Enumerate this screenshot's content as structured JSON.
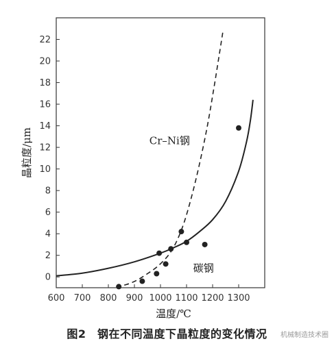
{
  "chart_data": {
    "type": "line",
    "title": "",
    "xlabel": "温度/℃",
    "ylabel": "晶粒度/μm",
    "xlim": [
      600,
      1400
    ],
    "ylim": [
      -1,
      24
    ],
    "xticks": [
      600,
      700,
      800,
      900,
      1000,
      1100,
      1200,
      1300
    ],
    "yticks": [
      0,
      2,
      4,
      6,
      8,
      10,
      12,
      14,
      16,
      18,
      20,
      22
    ],
    "grid": false,
    "series": [
      {
        "name": "Cr–Ni钢",
        "style": "dashed",
        "color": "#222222",
        "x": [
          830,
          870,
          910,
          950,
          990,
          1030,
          1060,
          1090,
          1120,
          1150,
          1180,
          1205,
          1225,
          1240
        ],
        "y": [
          -0.9,
          -0.7,
          -0.3,
          0.3,
          1.0,
          2.0,
          3.2,
          5.0,
          7.5,
          10.5,
          14.0,
          17.5,
          20.5,
          22.8
        ]
      },
      {
        "name": "碳钢",
        "style": "solid",
        "color": "#222222",
        "x": [
          600,
          700,
          800,
          900,
          1000,
          1050,
          1100,
          1150,
          1200,
          1250,
          1300,
          1330,
          1345,
          1355
        ],
        "y": [
          0.1,
          0.35,
          0.8,
          1.4,
          2.2,
          2.7,
          3.3,
          4.2,
          5.3,
          7.0,
          9.8,
          12.5,
          14.5,
          16.4
        ]
      }
    ],
    "points": {
      "x": [
        840,
        930,
        985,
        995,
        1020,
        1040,
        1080,
        1100,
        1170,
        1300
      ],
      "y": [
        -0.9,
        -0.4,
        0.3,
        2.2,
        1.2,
        2.6,
        4.2,
        3.2,
        3.0,
        13.8
      ]
    },
    "annotations": [
      {
        "text": "Cr–Ni钢",
        "x": 1035,
        "y": 12.3
      },
      {
        "text": "碳钢",
        "x": 1165,
        "y": 0.5
      }
    ],
    "caption": "图2　钢在不同温度下晶粒度的变化情况"
  },
  "watermark": "机械制造技术圈"
}
